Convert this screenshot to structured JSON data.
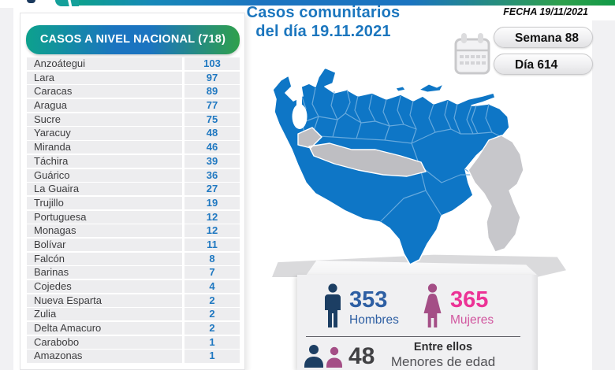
{
  "header": {
    "title_line1": "Casos comunitarios",
    "title_line2": "del día 19.11.2021",
    "fecha": "FECHA 19/11/2021",
    "badges": [
      {
        "label": "Semana 88"
      },
      {
        "label": "Día 614"
      }
    ]
  },
  "table": {
    "title": "CASOS A NIVEL NACIONAL  (718)",
    "total": 718,
    "rows": [
      {
        "state": "Anzoátegui",
        "cases": "103"
      },
      {
        "state": "Lara",
        "cases": "97"
      },
      {
        "state": "Caracas",
        "cases": "89"
      },
      {
        "state": "Aragua",
        "cases": "77"
      },
      {
        "state": "Sucre",
        "cases": "75"
      },
      {
        "state": "Yaracuy",
        "cases": "48"
      },
      {
        "state": "Miranda",
        "cases": "46"
      },
      {
        "state": "Táchira",
        "cases": "39"
      },
      {
        "state": "Guárico",
        "cases": "36"
      },
      {
        "state": "La Guaira",
        "cases": "27"
      },
      {
        "state": "Trujillo",
        "cases": "19"
      },
      {
        "state": "Portuguesa",
        "cases": "12"
      },
      {
        "state": "Monagas",
        "cases": "12"
      },
      {
        "state": "Bolívar",
        "cases": "11"
      },
      {
        "state": "Falcón",
        "cases": "8"
      },
      {
        "state": "Barinas",
        "cases": "7"
      },
      {
        "state": "Cojedes",
        "cases": "4"
      },
      {
        "state": "Nueva Esparta",
        "cases": "2"
      },
      {
        "state": "Zulia",
        "cases": "2"
      },
      {
        "state": "Delta Amacuro",
        "cases": "2"
      },
      {
        "state": "Carabobo",
        "cases": "1"
      },
      {
        "state": "Amazonas",
        "cases": "1"
      }
    ]
  },
  "stats": {
    "hombres": {
      "value": "353",
      "label": "Hombres"
    },
    "mujeres": {
      "value": "365",
      "label": "Mujeres"
    },
    "menores": {
      "value": "48",
      "line1": "Entre ellos",
      "line2": "Menores de edad"
    }
  },
  "colors": {
    "title-blue": "#1B76BE",
    "value-blue": "#1F78C1",
    "header-grad-left": "#0DA18D",
    "header-grad-mid": "#1B74C0",
    "header-grad-right": "#2FA04C",
    "row-gray": "#EDEDEF",
    "map-blue": "#0E76C6",
    "map-border": "#6CACDE",
    "state-gray": "#BEBEC2",
    "esequibo-gray": "#C7C7CB",
    "card-gray": "#F0F0F2",
    "men-navy": "#1C3E63",
    "men-text": "#2E5FA3",
    "women-icon": "#A44E86",
    "women-value": "#EC3396",
    "women-label": "#D1569F",
    "dark-text": "#414144"
  },
  "chart_data": {
    "type": "table",
    "title": "CASOS A NIVEL NACIONAL (718)",
    "date": "19.11.2021",
    "semana": 88,
    "dia": 614,
    "categories": [
      "Anzoátegui",
      "Lara",
      "Caracas",
      "Aragua",
      "Sucre",
      "Yaracuy",
      "Miranda",
      "Táchira",
      "Guárico",
      "La Guaira",
      "Trujillo",
      "Portuguesa",
      "Monagas",
      "Bolívar",
      "Falcón",
      "Barinas",
      "Cojedes",
      "Nueva Esparta",
      "Zulia",
      "Delta Amacuro",
      "Carabobo",
      "Amazonas"
    ],
    "values": [
      103,
      97,
      89,
      77,
      75,
      48,
      46,
      39,
      36,
      27,
      19,
      12,
      12,
      11,
      8,
      7,
      4,
      2,
      2,
      2,
      1,
      1
    ],
    "total": 718,
    "hombres": 353,
    "mujeres": 365,
    "menores_de_edad": 48,
    "map": {
      "region": "Venezuela",
      "highlight_color": "#0E76C6",
      "no_data_color": "#BEBEC2"
    }
  }
}
